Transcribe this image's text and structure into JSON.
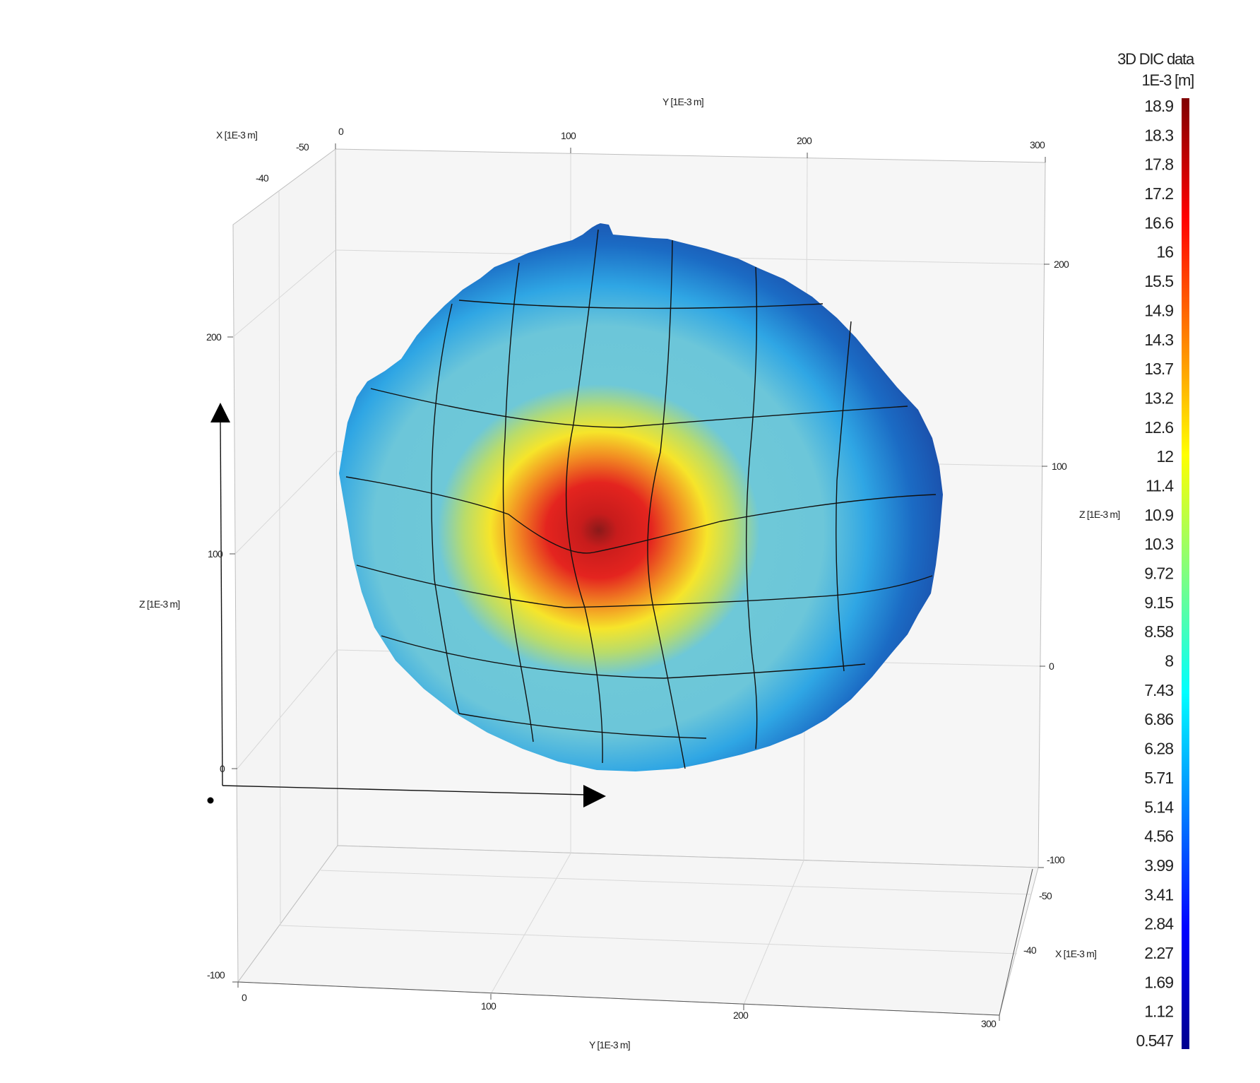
{
  "chart_data": {
    "type": "heatmap",
    "subtype": "3d-surface",
    "colormap": "jet",
    "colorbar": {
      "title_line1": "3D DIC data",
      "title_line2": "1E-3 [m]",
      "ticks": [
        "18.9",
        "18.3",
        "17.8",
        "17.2",
        "16.6",
        "16",
        "15.5",
        "14.9",
        "14.3",
        "13.7",
        "13.2",
        "12.6",
        "12",
        "11.4",
        "10.9",
        "10.3",
        "9.72",
        "9.15",
        "8.58",
        "8",
        "7.43",
        "6.86",
        "6.28",
        "5.71",
        "5.14",
        "4.56",
        "3.99",
        "3.41",
        "2.84",
        "2.27",
        "1.69",
        "1.12",
        "0.547"
      ],
      "min": 0.547,
      "max": 18.9
    },
    "axes": {
      "y_top": {
        "label": "Y [1E-3 m]",
        "ticks": [
          "0",
          "100",
          "200",
          "300"
        ]
      },
      "y_bottom": {
        "label": "Y [1E-3 m]",
        "ticks": [
          "0",
          "100",
          "200",
          "300"
        ]
      },
      "x_topleft": {
        "label": "X [1E-3 m]",
        "ticks": [
          "-50",
          "-40"
        ]
      },
      "x_bottomright": {
        "label": "X [1E-3 m]",
        "ticks": [
          "-50",
          "-40"
        ]
      },
      "z_left": {
        "label": "Z [1E-3 m]",
        "ticks": [
          "200",
          "100",
          "0",
          "-100"
        ]
      },
      "z_right": {
        "label": "Z [1E-3 m]",
        "ticks": [
          "200",
          "100",
          "0",
          "-100"
        ]
      }
    },
    "surface": {
      "peak_value": 18.9,
      "edge_value": 1.5,
      "peak_location_y": 115,
      "peak_location_z": 92
    },
    "colors": {
      "pane": "#f6f6f6",
      "grid": "#dcdcdc",
      "mesh": "#111111"
    }
  }
}
